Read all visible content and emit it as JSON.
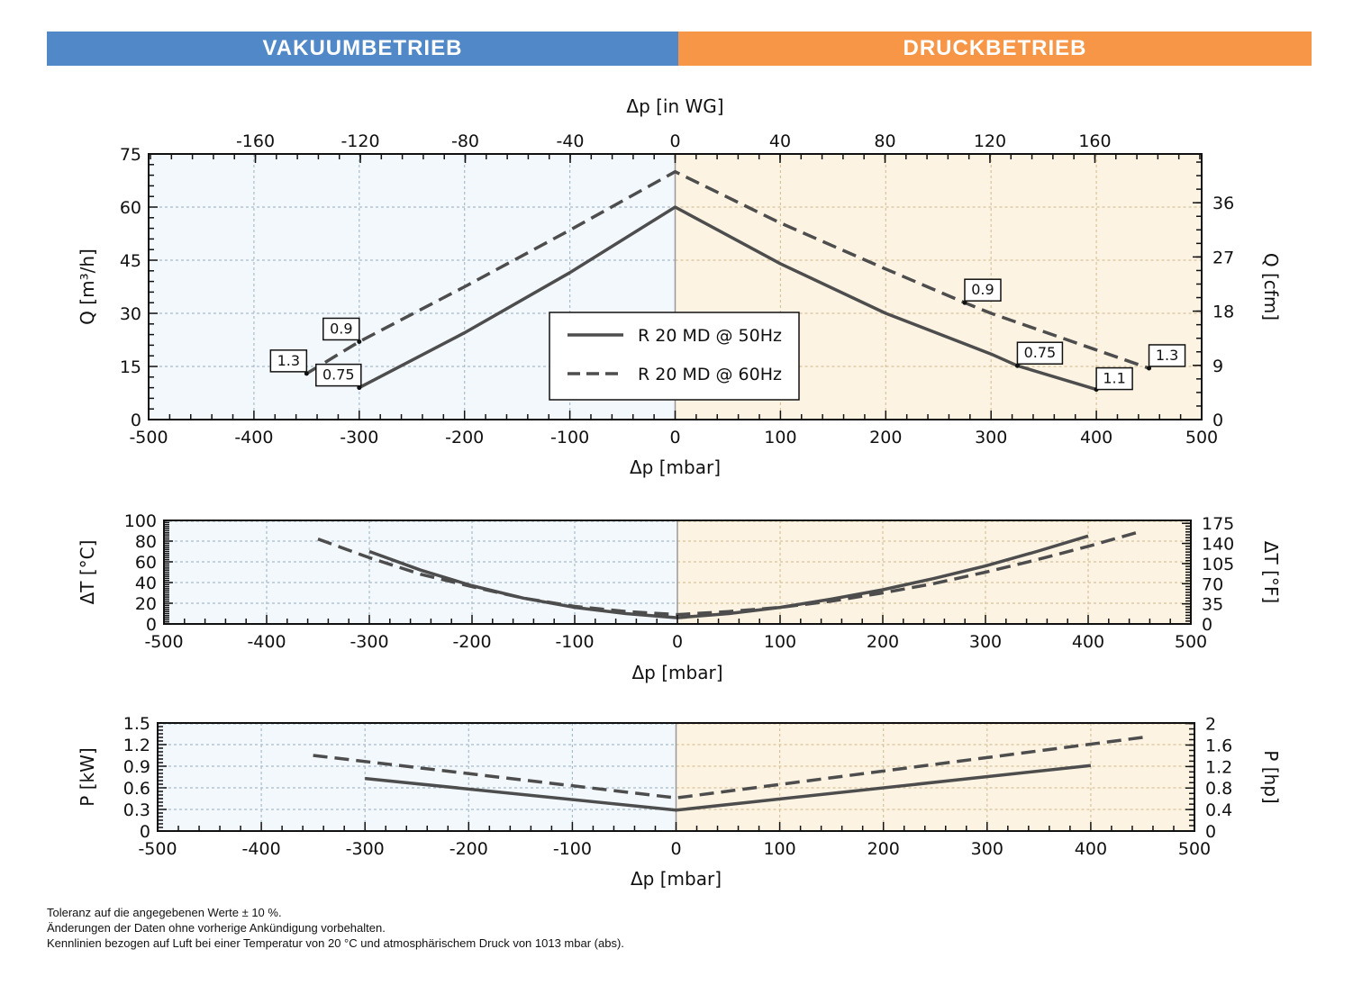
{
  "banner": {
    "left_label": "VAKUUMBETRIEB",
    "right_label": "DRUCKBETRIEB",
    "left_color": "#5189c8",
    "right_color": "#f79646"
  },
  "colors": {
    "vacuum_bg": "#f3f8fd",
    "pressure_bg": "#fdf3e2",
    "line": "#4d4d4d",
    "grid_vacuum": "#a9bccb",
    "grid_pressure": "#d6c39c"
  },
  "chart_data": [
    {
      "id": "flow",
      "type": "line",
      "title": "",
      "xlabel": "Δp [mbar]",
      "x2label": "Δp [in WG]",
      "ylabel": "Q [m³/h]",
      "y2label": "Q [cfm]",
      "xlim": [
        -500,
        500
      ],
      "ylim": [
        0,
        75
      ],
      "x2lim": [
        -200.7,
        200.7
      ],
      "y2lim": [
        0,
        44.1
      ],
      "xticks": [
        -500,
        -400,
        -300,
        -200,
        -100,
        0,
        100,
        200,
        300,
        400,
        500
      ],
      "yticks": [
        0,
        15,
        30,
        45,
        60,
        75
      ],
      "x2ticks": [
        -160,
        -120,
        -80,
        -40,
        0,
        40,
        80,
        120,
        160
      ],
      "y2ticks": [
        0,
        9,
        18,
        27,
        36
      ],
      "grid": true,
      "legend_position": "center",
      "series": [
        {
          "name": "R 20 MD @ 50Hz",
          "style": "solid",
          "x": [
            -300,
            -200,
            -100,
            0,
            100,
            200,
            300,
            325,
            400
          ],
          "y": [
            9,
            24.5,
            41.5,
            60,
            44,
            30,
            18.5,
            15.2,
            8.5
          ]
        },
        {
          "name": "R 20 MD @ 60Hz",
          "style": "dashed",
          "x": [
            -350,
            -300,
            -200,
            -100,
            0,
            100,
            200,
            275,
            300,
            450
          ],
          "y": [
            13,
            22,
            37.5,
            53.5,
            70,
            55.5,
            42.5,
            33,
            30,
            14.5
          ]
        }
      ],
      "annotations": [
        {
          "label": "1.3",
          "x": -350,
          "y": 13,
          "series": "R 20 MD @ 60Hz"
        },
        {
          "label": "0.9",
          "x": -300,
          "y": 22,
          "series": "R 20 MD @ 60Hz"
        },
        {
          "label": "0.75",
          "x": -300,
          "y": 9,
          "series": "R 20 MD @ 50Hz"
        },
        {
          "label": "0.9",
          "x": 275,
          "y": 33,
          "series": "R 20 MD @ 60Hz"
        },
        {
          "label": "0.75",
          "x": 325,
          "y": 15.2,
          "series": "R 20 MD @ 50Hz"
        },
        {
          "label": "1.1",
          "x": 400,
          "y": 8.5,
          "series": "R 20 MD @ 50Hz"
        },
        {
          "label": "1.3",
          "x": 450,
          "y": 14.5,
          "series": "R 20 MD @ 60Hz"
        }
      ]
    },
    {
      "id": "temperature",
      "type": "line",
      "xlabel": "Δp [mbar]",
      "ylabel": "ΔT [°C]",
      "y2label": "ΔT [°F]",
      "xlim": [
        -500,
        500
      ],
      "ylim": [
        0,
        100
      ],
      "y2lim": [
        0,
        180
      ],
      "xticks": [
        -500,
        -400,
        -300,
        -200,
        -100,
        0,
        100,
        200,
        300,
        400,
        500
      ],
      "yticks": [
        0,
        20,
        40,
        60,
        80,
        100
      ],
      "y2ticks": [
        0,
        35,
        70,
        105,
        140,
        175
      ],
      "grid": true,
      "series": [
        {
          "name": "R 20 MD @ 50Hz",
          "style": "solid",
          "x": [
            -300,
            -250,
            -200,
            -150,
            -100,
            -50,
            0,
            50,
            100,
            150,
            200,
            250,
            300,
            350,
            400
          ],
          "y": [
            70,
            52,
            37,
            25,
            16,
            10,
            6,
            10,
            16,
            24,
            33,
            44,
            56,
            70,
            85
          ]
        },
        {
          "name": "R 20 MD @ 60Hz",
          "style": "dashed",
          "x": [
            -350,
            -300,
            -250,
            -200,
            -150,
            -100,
            -50,
            0,
            50,
            100,
            150,
            200,
            250,
            300,
            350,
            400,
            450
          ],
          "y": [
            82,
            64,
            48,
            36,
            25,
            17,
            12,
            9,
            12,
            16,
            22,
            30,
            39,
            50,
            62,
            75,
            89
          ]
        }
      ]
    },
    {
      "id": "power",
      "type": "line",
      "xlabel": "Δp [mbar]",
      "ylabel": "P [kW]",
      "y2label": "P [hp]",
      "xlim": [
        -500,
        500
      ],
      "ylim": [
        0,
        1.5
      ],
      "y2lim": [
        0,
        2.01
      ],
      "xticks": [
        -500,
        -400,
        -300,
        -200,
        -100,
        0,
        100,
        200,
        300,
        400,
        500
      ],
      "yticks": [
        0,
        0.3,
        0.6,
        0.9,
        1.2,
        1.5
      ],
      "y2ticks": [
        0,
        0.4,
        0.8,
        1.2,
        1.6,
        2
      ],
      "grid": true,
      "series": [
        {
          "name": "R 20 MD @ 50Hz",
          "style": "solid",
          "x": [
            -300,
            0,
            400
          ],
          "y": [
            0.73,
            0.29,
            0.91
          ]
        },
        {
          "name": "R 20 MD @ 60Hz",
          "style": "dashed",
          "x": [
            -350,
            0,
            450
          ],
          "y": [
            1.05,
            0.46,
            1.3
          ]
        }
      ]
    }
  ],
  "footer": {
    "lines": [
      "Toleranz auf die angegebenen Werte ± 10 %.",
      "Änderungen der Daten ohne vorherige Ankündigung vorbehalten.",
      "Kennlinien bezogen auf Luft bei einer Temperatur von 20 °C und atmosphärischem Druck von 1013 mbar (abs)."
    ]
  }
}
